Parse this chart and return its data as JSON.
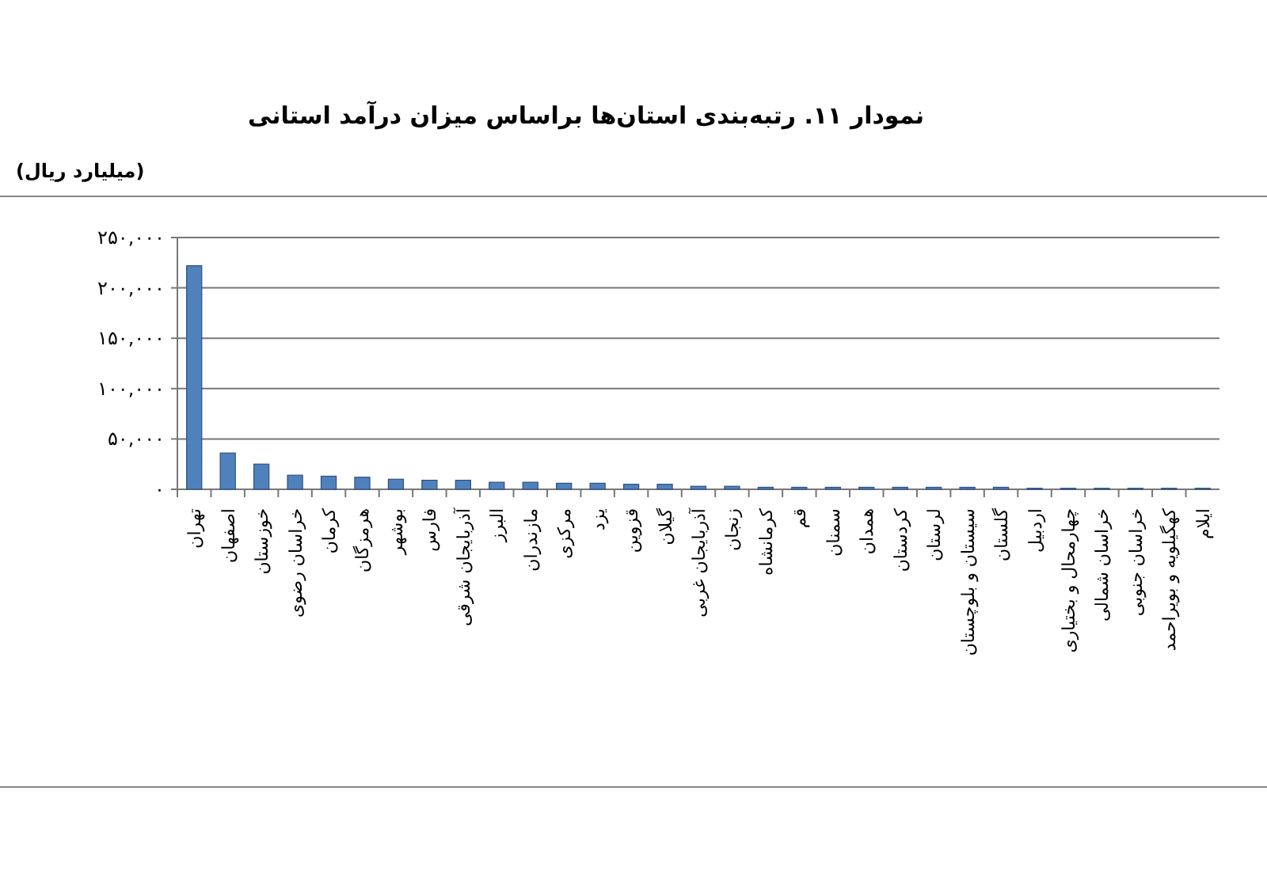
{
  "chart_data": {
    "type": "bar",
    "title": "نمودار ۱۱. رتبه‌بندی استان‌ها براساس میزان درآمد استانی",
    "ylabel": "(میلیارد ریال)",
    "categories": [
      "تهران",
      "اصفهان",
      "خوزستان",
      "خراسان رضوی",
      "کرمان",
      "هرمزگان",
      "بوشهر",
      "فارس",
      "آذربایجان شرقی",
      "البرز",
      "مازندران",
      "مرکزی",
      "یزد",
      "قزوین",
      "گیلان",
      "آذربایجان غربی",
      "زنجان",
      "کرمانشاه",
      "قم",
      "سمنان",
      "همدان",
      "کردستان",
      "لرستان",
      "سیستان و بلوچستان",
      "گلستان",
      "اردبیل",
      "چهارمحال و بختیاری",
      "خراسان شمالی",
      "خراسان جنوبی",
      "کهگیلویه و بویراحمد",
      "ایلام"
    ],
    "values": [
      222000,
      36000,
      25000,
      14000,
      13000,
      12000,
      10000,
      9000,
      9000,
      7000,
      7000,
      6000,
      6000,
      5000,
      5000,
      3000,
      3000,
      2000,
      2000,
      2000,
      2000,
      2000,
      2000,
      2000,
      2000,
      1000,
      1000,
      1000,
      1000,
      1000,
      1000
    ],
    "color": "#4f81bd",
    "ylim": [
      0,
      250000
    ],
    "yticks": [
      {
        "value": 0,
        "label": "۰"
      },
      {
        "value": 50000,
        "label": "۵۰,۰۰۰"
      },
      {
        "value": 100000,
        "label": "۱۰۰,۰۰۰"
      },
      {
        "value": 150000,
        "label": "۱۵۰,۰۰۰"
      },
      {
        "value": 200000,
        "label": "۲۰۰,۰۰۰"
      },
      {
        "value": 250000,
        "label": "۲۵۰,۰۰۰"
      }
    ],
    "grid": "y"
  }
}
